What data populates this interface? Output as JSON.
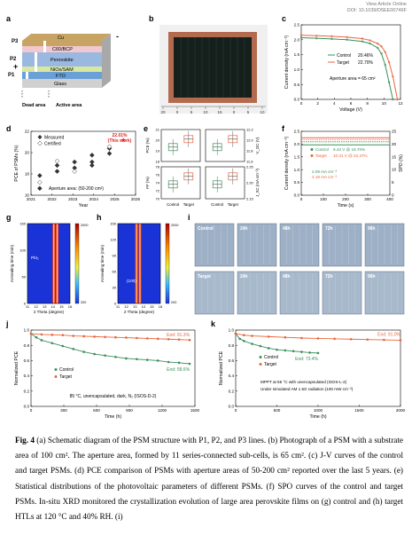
{
  "header": {
    "line1": "View Article Online",
    "line2": "DOI: 10.1039/D5EE00746F"
  },
  "panel_labels": [
    "a",
    "b",
    "c",
    "d",
    "e",
    "f",
    "g",
    "h",
    "i",
    "j",
    "k"
  ],
  "panel_a": {
    "layers": [
      "Cu",
      "C60/BCP",
      "Perovskite",
      "NiOx/SAM",
      "FTO",
      "Glass"
    ],
    "lines": [
      "P1",
      "P2",
      "P3"
    ],
    "plus": "+",
    "minus": "-",
    "areas": [
      "Dead area",
      "Active area"
    ]
  },
  "panel_b": {
    "ruler_ticks": [
      "20",
      "0",
      "5",
      "10",
      "15",
      "0",
      "5",
      "10"
    ]
  },
  "chart_data": [
    {
      "id": "c",
      "type": "line",
      "xlabel": "Voltage (V)",
      "ylabel": "Current density (mA cm⁻²)",
      "xticks": [
        "0",
        "2",
        "4",
        "6",
        "8",
        "10",
        "12"
      ],
      "yticks": [
        "0.0",
        "0.5",
        "1.0",
        "1.5",
        "2.0",
        "2.5"
      ],
      "xlim": [
        0,
        13
      ],
      "ylim": [
        0,
        2.6
      ],
      "annotation": "Aperture area = 65 cm²",
      "series": [
        {
          "name": "Control",
          "label": "20.46%",
          "color": "#3a8f5c",
          "x": [
            0,
            2,
            4,
            6,
            8,
            9,
            10,
            10.5,
            11,
            11.5,
            12
          ],
          "y": [
            2.15,
            2.13,
            2.11,
            2.08,
            2.02,
            1.95,
            1.8,
            1.6,
            1.2,
            0.6,
            0
          ]
        },
        {
          "name": "Target",
          "label": "22.70%",
          "color": "#e8663d",
          "x": [
            0,
            2,
            4,
            6,
            8,
            9,
            10,
            10.5,
            11,
            11.5,
            12,
            12.6
          ],
          "y": [
            2.24,
            2.22,
            2.2,
            2.17,
            2.12,
            2.06,
            1.95,
            1.85,
            1.65,
            1.3,
            0.8,
            0
          ]
        }
      ]
    },
    {
      "id": "d",
      "type": "scatter",
      "xlabel": "Year",
      "ylabel": "PCE of PSMs (%)",
      "xticks": [
        "2021",
        "2022",
        "2023",
        "2024",
        "2025",
        "2026"
      ],
      "yticks": [
        "16",
        "18",
        "20",
        "22"
      ],
      "xlim": [
        2020.5,
        2026.5
      ],
      "ylim": [
        15.5,
        23
      ],
      "annotation": "Aperture area: (50-200 cm²)",
      "highlight": "22.01%\n(This work)",
      "series": [
        {
          "name": "Measured",
          "marker": "filled-diamond",
          "x": [
            2021,
            2021,
            2022,
            2022,
            2023,
            2023,
            2024,
            2024,
            2024,
            2025,
            2025
          ],
          "y": [
            17.8,
            16.3,
            18.3,
            19.0,
            18.7,
            19.4,
            19.4,
            20.2,
            19.0,
            21.0,
            20.4
          ]
        },
        {
          "name": "Certified",
          "marker": "open-diamond",
          "x": [
            2021,
            2022,
            2023,
            2025
          ],
          "y": [
            17.0,
            19.5,
            18.3,
            21.2
          ]
        },
        {
          "name": "This work",
          "marker": "red-star",
          "x": [
            2025.8
          ],
          "y": [
            22.01
          ]
        }
      ]
    },
    {
      "id": "e",
      "type": "box",
      "categories": [
        "Control",
        "Target"
      ],
      "subplots": [
        {
          "ylabel": "PCE (%)",
          "yticks": [
            "18",
            "19",
            "20",
            "21"
          ]
        },
        {
          "ylabel": "V_OC (V)",
          "yticks": [
            "11.6",
            "11.8",
            "12.0",
            "12.2"
          ]
        },
        {
          "ylabel": "FF (%)",
          "yticks": [
            "70",
            "72",
            "74",
            "76",
            "78"
          ]
        },
        {
          "ylabel": "J_SC (mA cm⁻²)",
          "yticks": [
            "2.15",
            "2.20",
            "2.25"
          ]
        }
      ]
    },
    {
      "id": "f",
      "type": "line",
      "xlabel": "Time (s)",
      "ylabel": "Current density (mA cm⁻²)",
      "y2label": "SPO (%)",
      "xticks": [
        "0",
        "100",
        "200",
        "300",
        "400"
      ],
      "yticks": [
        "0.0",
        "0.5",
        "1.0",
        "1.5",
        "2.0",
        "2.5"
      ],
      "y2ticks": [
        "0",
        "5",
        "10",
        "15",
        "20",
        "25"
      ],
      "series": [
        {
          "name": "Control",
          "label": "9.43 V @ 19.70%",
          "current": "2.09 mA cm⁻²",
          "color": "#3a8f5c"
        },
        {
          "name": "Target",
          "label": "10.31 V @ 22.47%",
          "current": "2.18 mA cm⁻²",
          "color": "#e8663d"
        }
      ]
    },
    {
      "id": "g",
      "type": "heatmap",
      "xlabel": "2 Theta (degree)",
      "ylabel": "Annealing time (min)",
      "xticks": [
        "11",
        "12",
        "13",
        "14",
        "15",
        "16"
      ],
      "yticks": [
        "0",
        "50",
        "100",
        "150"
      ],
      "colorbar": [
        "2000",
        "200"
      ],
      "annotation": "PbI₂"
    },
    {
      "id": "h",
      "type": "heatmap",
      "xlabel": "2 Theta (degree)",
      "ylabel": "Annealing time (min)",
      "xticks": [
        "11",
        "12",
        "13",
        "14",
        "15",
        "16"
      ],
      "yticks": [
        "0",
        "30",
        "60",
        "90",
        "120",
        "150"
      ],
      "colorbar": [
        "2000",
        "200"
      ],
      "annotation": "(100)"
    },
    {
      "id": "j",
      "type": "line",
      "xlabel": "Time (h)",
      "ylabel": "Normalized PCE",
      "xticks": [
        "0",
        "300",
        "600",
        "900",
        "1200",
        "1500"
      ],
      "yticks": [
        "0.0",
        "0.2",
        "0.4",
        "0.6",
        "0.8",
        "1.0"
      ],
      "xlim": [
        0,
        1550
      ],
      "ylim": [
        0,
        1.05
      ],
      "annotation": "85 °C, unencapsulated, dark, N₂ (ISOS-D-2)",
      "series": [
        {
          "name": "Control",
          "end": "End: 58.6%",
          "color": "#3a8f5c",
          "x": [
            0,
            50,
            100,
            200,
            300,
            400,
            500,
            600,
            700,
            800,
            900,
            1000,
            1100,
            1200,
            1300,
            1400,
            1500
          ],
          "y": [
            1.0,
            0.95,
            0.91,
            0.87,
            0.83,
            0.79,
            0.75,
            0.72,
            0.7,
            0.68,
            0.66,
            0.65,
            0.64,
            0.63,
            0.61,
            0.6,
            0.586
          ]
        },
        {
          "name": "Target",
          "end": "End: 91.3%",
          "color": "#e8663d",
          "x": [
            0,
            100,
            200,
            300,
            400,
            500,
            600,
            700,
            800,
            900,
            1000,
            1100,
            1200,
            1300,
            1400,
            1500
          ],
          "y": [
            1.0,
            0.99,
            0.985,
            0.98,
            0.97,
            0.965,
            0.96,
            0.955,
            0.95,
            0.945,
            0.94,
            0.935,
            0.93,
            0.925,
            0.92,
            0.913
          ]
        }
      ]
    },
    {
      "id": "k",
      "type": "line",
      "xlabel": "Time (h)",
      "ylabel": "Normalized PCE",
      "xticks": [
        "0",
        "500",
        "1000",
        "1500",
        "2000"
      ],
      "yticks": [
        "0.0",
        "0.2",
        "0.4",
        "0.6",
        "0.8",
        "1.0"
      ],
      "xlim": [
        0,
        2000
      ],
      "ylim": [
        0,
        1.05
      ],
      "annotation1": "MPPT at 65 °C with unencapsulated (ISOS-L-2)",
      "annotation2": "Under simulated AM 1.5G radiation (100 mW cm⁻²)",
      "series": [
        {
          "name": "Control",
          "end": "End: 73.4%",
          "color": "#3a8f5c",
          "x": [
            0,
            50,
            100,
            200,
            300,
            400,
            500,
            600,
            700,
            800,
            900,
            1000
          ],
          "y": [
            1.0,
            0.93,
            0.9,
            0.86,
            0.83,
            0.8,
            0.78,
            0.77,
            0.76,
            0.75,
            0.74,
            0.734
          ]
        },
        {
          "name": "Target",
          "end": "End: 91.0%",
          "color": "#e8663d",
          "x": [
            0,
            100,
            200,
            400,
            600,
            800,
            1000,
            1200,
            1400,
            1600,
            1800,
            2000
          ],
          "y": [
            1.0,
            0.98,
            0.97,
            0.96,
            0.95,
            0.94,
            0.935,
            0.93,
            0.925,
            0.92,
            0.915,
            0.91
          ]
        }
      ]
    }
  ],
  "panel_i": {
    "rows": [
      {
        "label": "Control",
        "times": [
          "24h",
          "48h",
          "72h",
          "96h"
        ]
      },
      {
        "label": "Target",
        "times": [
          "24h",
          "48h",
          "72h",
          "96h"
        ]
      }
    ]
  },
  "caption": {
    "bold": "Fig. 4",
    "text": " (a) Schematic diagram of the PSM structure with P1, P2, and P3 lines. (b) Photograph of a PSM with a substrate area of 100 cm². The aperture area, formed by 11 series-connected sub-cells, is 65 cm². (c) J-V curves of the control and target PSMs. (d) PCE comparison of PSMs with aperture areas of 50-200 cm² reported over the last 5 years. (e) Statistical distributions of the photovoltaic parameters of different PSMs. (f) SPO curves of the control and target PSMs. In-situ XRD monitored the crystallization evolution of large area perovskite films on (g) control and (h) target HTLs at 120 °C and 40% RH. (i)"
  }
}
